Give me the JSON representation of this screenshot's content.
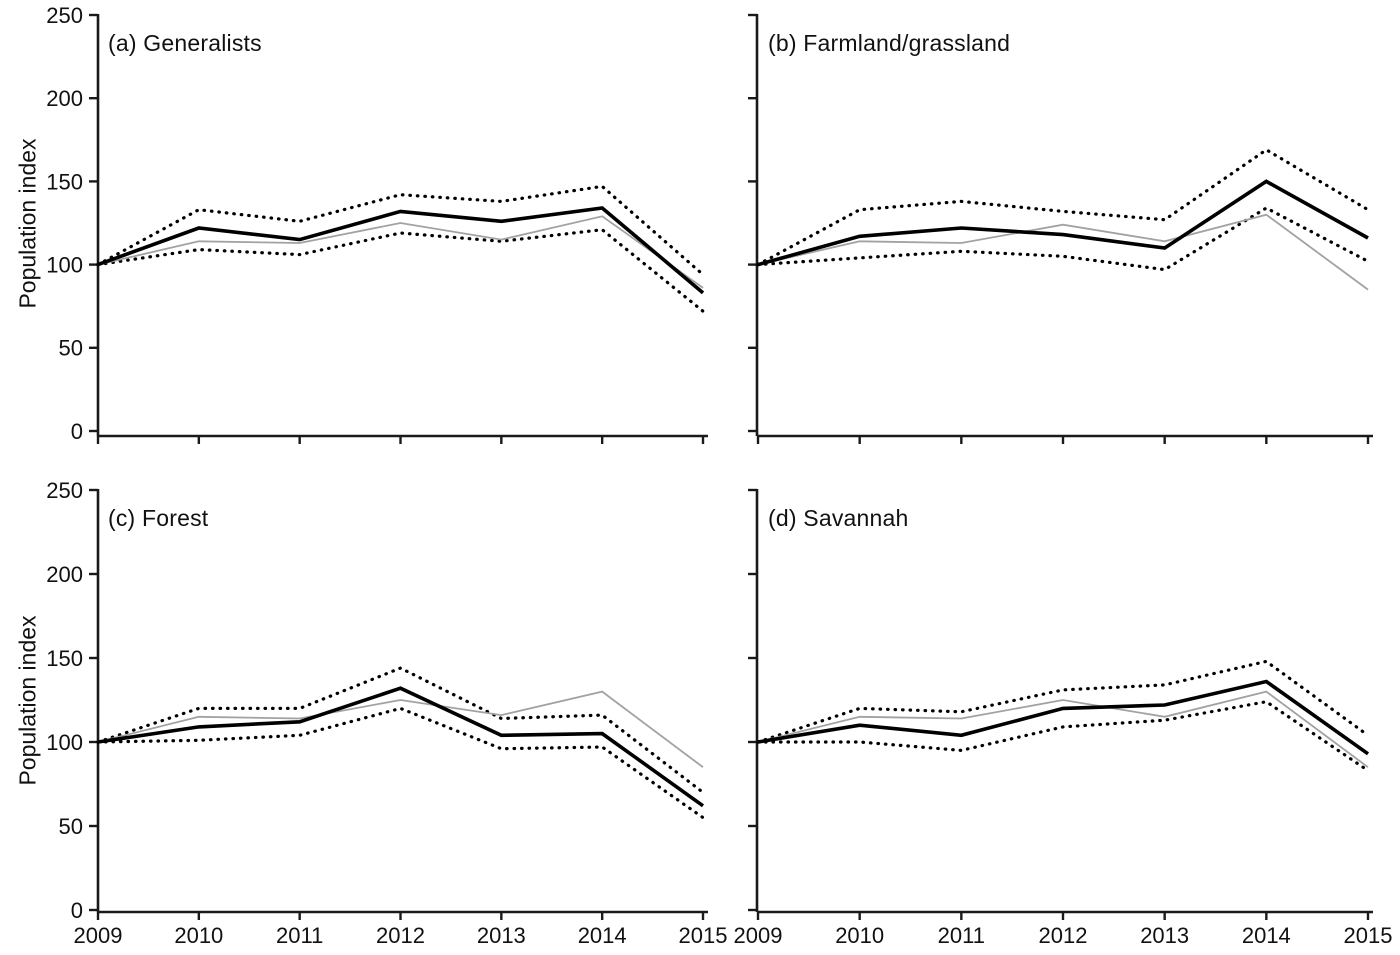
{
  "figure": {
    "y_label": "Population index",
    "y_tick_labels": [
      "0",
      "50",
      "100",
      "150",
      "200",
      "250"
    ],
    "x_tick_labels": [
      "2009",
      "2010",
      "2011",
      "2012",
      "2013",
      "2014",
      "2015"
    ]
  },
  "colors": {
    "axis": "#1a1a1a",
    "solid_line": "#000000",
    "gray_line": "#a2a2a2",
    "dotted_line": "#000000",
    "text": "#111111"
  },
  "chart_data": [
    {
      "type": "line",
      "title": "(a) Generalists",
      "ylabel": "Population index",
      "x": [
        2009,
        2010,
        2011,
        2012,
        2013,
        2014,
        2015
      ],
      "ylim": [
        0,
        250
      ],
      "yticks": [
        0,
        50,
        100,
        150,
        200,
        250
      ],
      "grid": false,
      "legend": "none",
      "series": [
        {
          "name": "main_trend_solid_black",
          "values": [
            100,
            122,
            115,
            132,
            126,
            134,
            83
          ]
        },
        {
          "name": "secondary_index_gray",
          "values": [
            100,
            114,
            113,
            125,
            115,
            129,
            86
          ]
        },
        {
          "name": "upper_dotted",
          "values": [
            100,
            133,
            126,
            142,
            138,
            147,
            94
          ]
        },
        {
          "name": "lower_dotted",
          "values": [
            100,
            109,
            106,
            119,
            114,
            121,
            72
          ]
        }
      ]
    },
    {
      "type": "line",
      "title": "(b) Farmland/grassland",
      "ylabel": "",
      "x": [
        2009,
        2010,
        2011,
        2012,
        2013,
        2014,
        2015
      ],
      "ylim": [
        0,
        250
      ],
      "yticks": [
        0,
        50,
        100,
        150,
        200,
        250
      ],
      "grid": false,
      "legend": "none",
      "series": [
        {
          "name": "main_trend_solid_black",
          "values": [
            100,
            117,
            122,
            118,
            110,
            150,
            116
          ]
        },
        {
          "name": "secondary_index_gray",
          "values": [
            100,
            114,
            113,
            124,
            114,
            130,
            85
          ]
        },
        {
          "name": "upper_dotted",
          "values": [
            100,
            133,
            138,
            132,
            127,
            169,
            133
          ]
        },
        {
          "name": "lower_dotted",
          "values": [
            100,
            104,
            108,
            105,
            97,
            134,
            102
          ]
        }
      ]
    },
    {
      "type": "line",
      "title": "(c) Forest",
      "ylabel": "Population index",
      "x": [
        2009,
        2010,
        2011,
        2012,
        2013,
        2014,
        2015
      ],
      "ylim": [
        0,
        250
      ],
      "yticks": [
        0,
        50,
        100,
        150,
        200,
        250
      ],
      "grid": false,
      "legend": "none",
      "series": [
        {
          "name": "main_trend_solid_black",
          "values": [
            100,
            109,
            112,
            132,
            104,
            105,
            62
          ]
        },
        {
          "name": "secondary_index_gray",
          "values": [
            100,
            115,
            114,
            125,
            116,
            130,
            85
          ]
        },
        {
          "name": "upper_dotted",
          "values": [
            100,
            120,
            120,
            144,
            114,
            116,
            70
          ]
        },
        {
          "name": "lower_dotted",
          "values": [
            100,
            101,
            104,
            120,
            96,
            97,
            55
          ]
        }
      ]
    },
    {
      "type": "line",
      "title": "(d) Savannah",
      "ylabel": "",
      "x": [
        2009,
        2010,
        2011,
        2012,
        2013,
        2014,
        2015
      ],
      "ylim": [
        0,
        250
      ],
      "yticks": [
        0,
        50,
        100,
        150,
        200,
        250
      ],
      "grid": false,
      "legend": "none",
      "series": [
        {
          "name": "main_trend_solid_black",
          "values": [
            100,
            110,
            104,
            120,
            122,
            136,
            93
          ]
        },
        {
          "name": "secondary_index_gray",
          "values": [
            100,
            115,
            114,
            125,
            115,
            130,
            85
          ]
        },
        {
          "name": "upper_dotted",
          "values": [
            100,
            120,
            118,
            131,
            134,
            148,
            104
          ]
        },
        {
          "name": "lower_dotted",
          "values": [
            100,
            100,
            95,
            109,
            113,
            124,
            83
          ]
        }
      ]
    }
  ]
}
